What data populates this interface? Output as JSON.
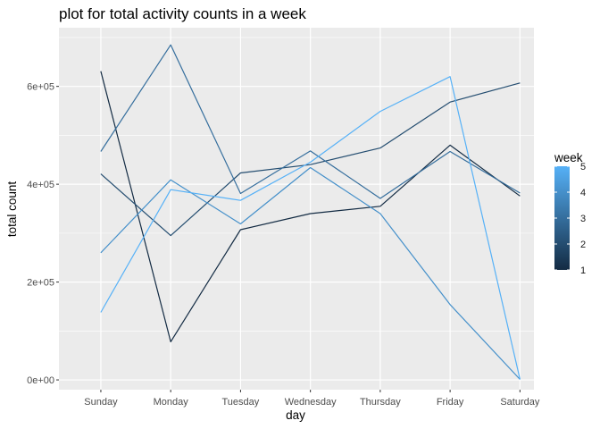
{
  "chart_data": {
    "type": "line",
    "title": "plot for total activity counts in a week",
    "xlabel": "day",
    "ylabel": "total count",
    "categories": [
      "Sunday",
      "Monday",
      "Tuesday",
      "Wednesday",
      "Thursday",
      "Friday",
      "Saturday"
    ],
    "y_ticks": [
      "0e+00",
      "2e+05",
      "4e+05",
      "6e+05"
    ],
    "y_tick_values": [
      0,
      200000,
      400000,
      600000
    ],
    "ylim": [
      -20000,
      720000
    ],
    "grid": true,
    "legend": {
      "title": "week",
      "position": "right",
      "ticks": [
        "1",
        "2",
        "3",
        "4",
        "5"
      ],
      "range": [
        1,
        5
      ],
      "color_low": "#132B43",
      "color_high": "#56B1F7"
    },
    "series": [
      {
        "week": 1,
        "values": [
          631000,
          78000,
          307000,
          340000,
          355000,
          480000,
          376000
        ]
      },
      {
        "week": 2,
        "values": [
          421000,
          295000,
          423000,
          440000,
          474000,
          568000,
          607000
        ]
      },
      {
        "week": 3,
        "values": [
          467000,
          685000,
          381000,
          468000,
          371000,
          467000,
          382000
        ]
      },
      {
        "week": 4,
        "values": [
          260000,
          409000,
          319000,
          434000,
          340000,
          154000,
          1000
        ]
      },
      {
        "week": 5,
        "values": [
          138000,
          389000,
          367000,
          445000,
          549000,
          620000,
          1000
        ]
      }
    ],
    "panel_background": "#EBEBEB",
    "grid_color": "#FFFFFF"
  }
}
